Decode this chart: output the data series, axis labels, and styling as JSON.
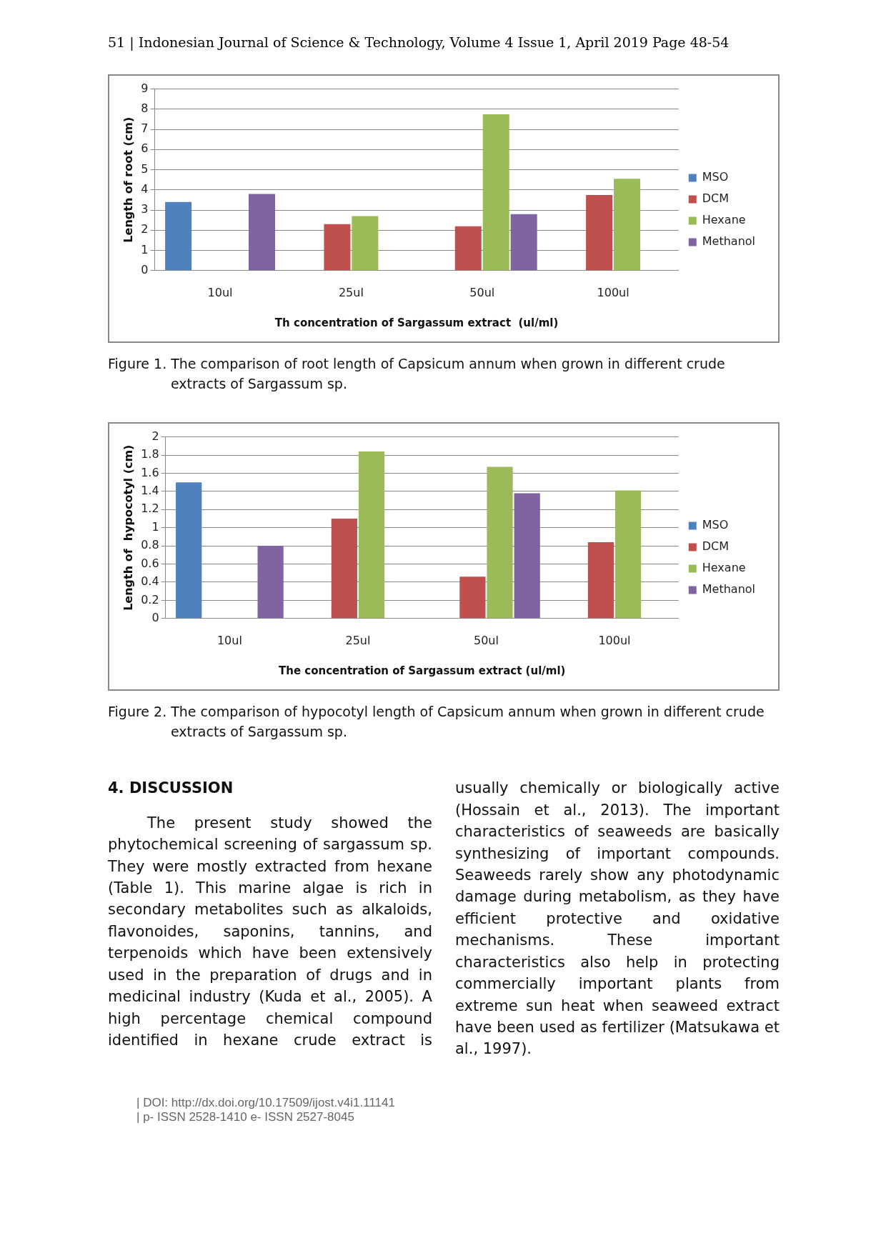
{
  "chart_data": [
    {
      "type": "bar",
      "title": "51 | Indonesian Journal of Science & Technology, Volume 4 Issue 1, April 2019 Page 48-54",
      "xlabel": "Th concentration of Sargassum extract  (ul/ml)",
      "ylabel": "Length of root (cm)",
      "categories": [
        "10ul",
        "25ul",
        "50ul",
        "100ul"
      ],
      "series": [
        {
          "name": "MSO",
          "color": "#4f81bd",
          "values": [
            3.4,
            null,
            null,
            null
          ]
        },
        {
          "name": "DCM",
          "color": "#c0504d",
          "values": [
            null,
            2.3,
            2.2,
            3.75
          ]
        },
        {
          "name": "Hexane",
          "color": "#9bbb59",
          "values": [
            null,
            2.7,
            7.75,
            4.55
          ]
        },
        {
          "name": "Methanol",
          "color": "#8064a2",
          "values": [
            3.8,
            null,
            2.8,
            null
          ]
        }
      ],
      "ylim": [
        0,
        9
      ],
      "yticks": [
        0,
        1,
        2,
        3,
        4,
        5,
        6,
        7,
        8,
        9
      ],
      "grid": "y",
      "legend": "right",
      "annotations": [
        "Figure 1. The comparison of root length of Capsicum annum when grown in different crude extracts of Sargassum sp."
      ]
    },
    {
      "type": "bar",
      "xlabel": "The concentration of Sargassum extract (ul/ml)",
      "ylabel": "Length of  hypocotyl (cm)",
      "categories": [
        "10ul",
        "25ul",
        "50ul",
        "100ul"
      ],
      "series": [
        {
          "name": "MSO",
          "color": "#4f81bd",
          "values": [
            1.5,
            null,
            null,
            null
          ]
        },
        {
          "name": "DCM",
          "color": "#c0504d",
          "values": [
            null,
            1.1,
            0.46,
            0.84
          ]
        },
        {
          "name": "Hexane",
          "color": "#9bbb59",
          "values": [
            null,
            1.84,
            1.67,
            1.41
          ]
        },
        {
          "name": "Methanol",
          "color": "#8064a2",
          "values": [
            0.8,
            null,
            1.38,
            null
          ]
        }
      ],
      "ylim": [
        0,
        2
      ],
      "yticks": [
        0,
        0.2,
        0.4,
        0.6,
        0.8,
        1,
        1.2,
        1.4,
        1.6,
        1.8,
        2
      ],
      "grid": "y",
      "legend": "right",
      "annotations": [
        "Figure 2. The comparison of hypocotyl length of Capsicum annum when grown in different crude extracts of Sargassum sp.",
        "4. DISCUSSION",
        "The present study showed the phytochemical screening of sargassum sp. They were mostly extracted from hexane (Table 1). This marine algae is rich in secondary metabolites such as alkaloids, flavonoides, saponins, tannins, and terpenoids which have been extensively used in the preparation of drugs and in medicinal industry (Kuda et al., 2005). A high percentage chemical compound identified in hexane crude extract is usually chemically or biologically active (Hossain et al., 2013). The important characteristics of seaweeds are basically synthesizing of important compounds. Seaweeds rarely show any photodynamic damage during metabolism, as they have efficient protective and oxidative mechanisms. These important characteristics also help in protecting commercially important plants from extreme sun heat when seaweed extract have been used as fertilizer (Matsukawa et al., 1997).",
        "| DOI: http://dx.doi.org/10.17509/ijost.v4i1.11141",
        "| p- ISSN 2528-1410 e- ISSN 2527-8045"
      ]
    }
  ]
}
